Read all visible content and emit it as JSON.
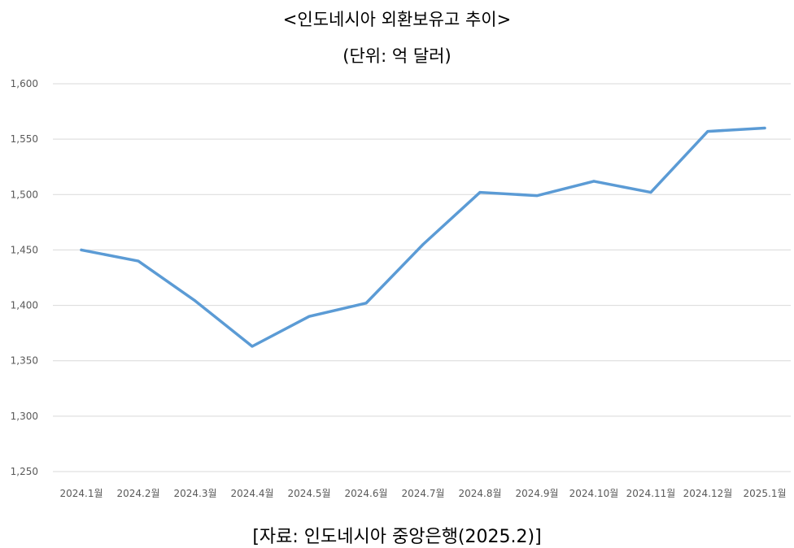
{
  "chart_data": {
    "type": "line",
    "title": "<인도네시아 외환보유고 추이>",
    "subtitle": "(단위: 억 달러)",
    "source": "[자료: 인도네시아 중앙은행(2025.2)]",
    "categories": [
      "2024.1월",
      "2024.2월",
      "2024.3월",
      "2024.4월",
      "2024.5월",
      "2024.6월",
      "2024.7월",
      "2024.8월",
      "2024.9월",
      "2024.10월",
      "2024.11월",
      "2024.12월",
      "2025.1월"
    ],
    "series": [
      {
        "values": [
          1450,
          1440,
          1404,
          1363,
          1390,
          1402,
          1455,
          1502,
          1499,
          1512,
          1502,
          1557,
          1560
        ]
      }
    ],
    "y_ticks": [
      "1,250",
      "1,300",
      "1,350",
      "1,400",
      "1,450",
      "1,500",
      "1,550",
      "1,600"
    ],
    "ylim": [
      1250,
      1600
    ],
    "grid": true,
    "line_color": "#5B9BD5",
    "grid_color": "#D9D9D9"
  }
}
